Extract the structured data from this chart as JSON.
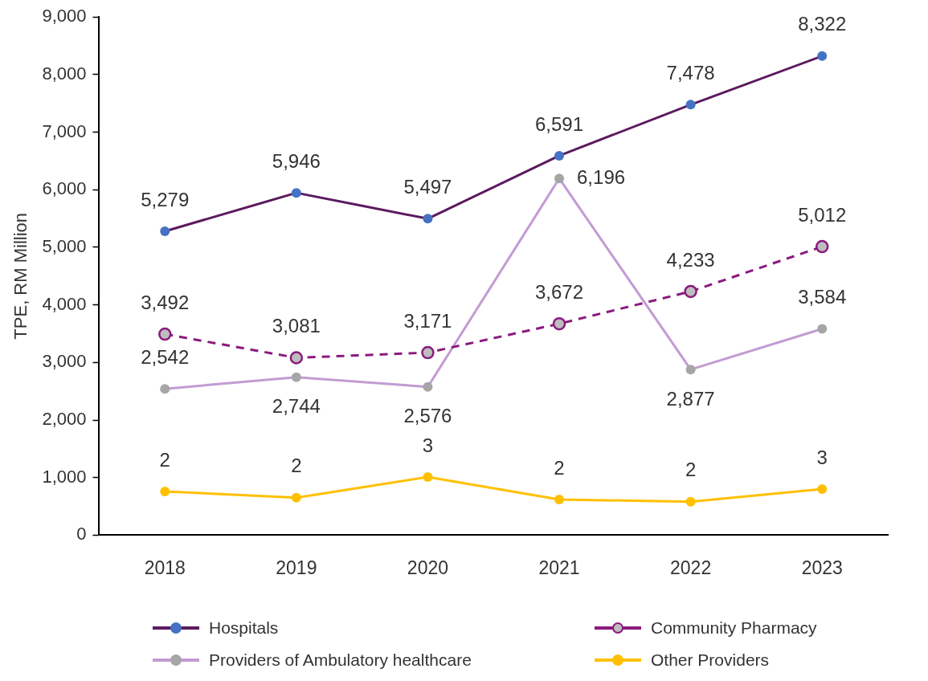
{
  "chart_data": {
    "type": "line",
    "ylabel": "TPE, RM Million",
    "categories": [
      "2018",
      "2019",
      "2020",
      "2021",
      "2022",
      "2023"
    ],
    "ylim": [
      0,
      9000
    ],
    "yticks": [
      {
        "value": 0,
        "label": "0"
      },
      {
        "value": 1000,
        "label": "1,000"
      },
      {
        "value": 2000,
        "label": "2,000"
      },
      {
        "value": 3000,
        "label": "3,000"
      },
      {
        "value": 4000,
        "label": "4,000"
      },
      {
        "value": 5000,
        "label": "5,000"
      },
      {
        "value": 6000,
        "label": "6,000"
      },
      {
        "value": 7000,
        "label": "7,000"
      },
      {
        "value": 8000,
        "label": "8,000"
      },
      {
        "value": 9000,
        "label": "9,000"
      }
    ],
    "grid": false,
    "legend": "bottom",
    "marker": "circle",
    "line_style": "solid",
    "series": [
      {
        "name": "Hospitals",
        "color": "#5c1a5e",
        "colors": [
          "#4472c4",
          "#4472c4",
          "#4472c4",
          "#4472c4",
          "#4472c4",
          "#4472c4"
        ],
        "values": [
          5279,
          5946,
          5497,
          6591,
          7478,
          8322
        ],
        "value_labels": [
          "5,279",
          "5,946",
          "5,497",
          "6,591",
          "7,478",
          "8,322"
        ]
      },
      {
        "name": "Community Pharmacy",
        "color": "#8b1a7e",
        "colors": [
          "#bdbdbd",
          "#bdbdbd",
          "#bdbdbd",
          "#bdbdbd",
          "#bdbdbd",
          "#bdbdbd"
        ],
        "line_style": "dashed",
        "values": [
          3492,
          3081,
          3171,
          3672,
          4233,
          5012
        ],
        "value_labels": [
          "3,492",
          "3,081",
          "3,171",
          "3,672",
          "4,233",
          "5,012"
        ]
      },
      {
        "name": "Providers of Ambulatory healthcare",
        "color": "#c39bd3",
        "colors": [
          "#a6a6a6",
          "#a6a6a6",
          "#a6a6a6",
          "#a6a6a6",
          "#a6a6a6",
          "#a6a6a6"
        ],
        "values": [
          2542,
          2744,
          2576,
          6196,
          2877,
          3584
        ],
        "value_labels": [
          "2,542",
          "2,744",
          "2,576",
          "6,196",
          "2,877",
          "3,584"
        ]
      },
      {
        "name": "Other Providers",
        "color": "#ffc000",
        "colors": [
          "#ffc000",
          "#ffc000",
          "#ffc000",
          "#ffc000",
          "#ffc000",
          "#ffc000"
        ],
        "values": [
          760,
          650,
          1010,
          620,
          580,
          800
        ]
      }
    ],
    "annotations": [
      {
        "text": "2",
        "x": "2018",
        "y": 760
      },
      {
        "text": "2",
        "x": "2019",
        "y": 650
      },
      {
        "text": "3",
        "x": "2020",
        "y": 1010
      },
      {
        "text": "2",
        "x": "2021",
        "y": 620
      },
      {
        "text": "2",
        "x": "2022",
        "y": 580
      },
      {
        "text": "3",
        "x": "2023",
        "y": 800
      }
    ]
  }
}
